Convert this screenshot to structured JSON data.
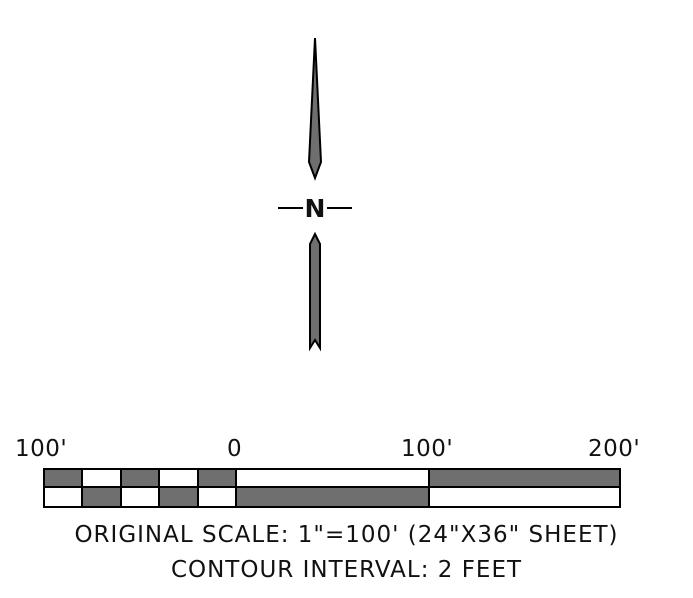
{
  "north_arrow": {
    "letter": "N",
    "fill_color": "#6f6f6f",
    "stroke_color": "#000000"
  },
  "scale_bar": {
    "tick_labels": [
      "100'",
      "0",
      "100'",
      "200'"
    ],
    "units": "feet",
    "fill_color": "#6f6f6f",
    "stroke_color": "#000000"
  },
  "captions": {
    "scale": "ORIGINAL SCALE: 1\"=100' (24\"X36\" SHEET)",
    "contour": "CONTOUR INTERVAL: 2 FEET"
  }
}
